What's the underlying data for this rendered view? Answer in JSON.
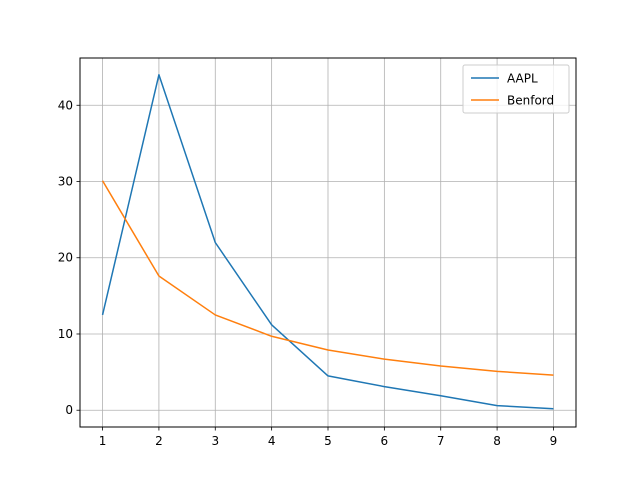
{
  "chart_data": {
    "type": "line",
    "title": "",
    "xlabel": "",
    "ylabel": "",
    "x": [
      1,
      2,
      3,
      4,
      5,
      6,
      7,
      8,
      9
    ],
    "xlim": [
      0.6,
      9.4
    ],
    "ylim": [
      -2.2,
      46.2
    ],
    "xticks": [
      1,
      2,
      3,
      4,
      5,
      6,
      7,
      8,
      9
    ],
    "yticks": [
      0,
      10,
      20,
      30,
      40
    ],
    "grid": true,
    "legend_position": "top-right",
    "series": [
      {
        "name": "AAPL",
        "color": "#1f77b4",
        "values": [
          12.5,
          44.0,
          22.0,
          11.2,
          4.5,
          3.1,
          1.9,
          0.6,
          0.2
        ]
      },
      {
        "name": "Benford",
        "color": "#ff7f0e",
        "values": [
          30.1,
          17.6,
          12.5,
          9.7,
          7.9,
          6.7,
          5.8,
          5.1,
          4.6
        ]
      }
    ]
  }
}
